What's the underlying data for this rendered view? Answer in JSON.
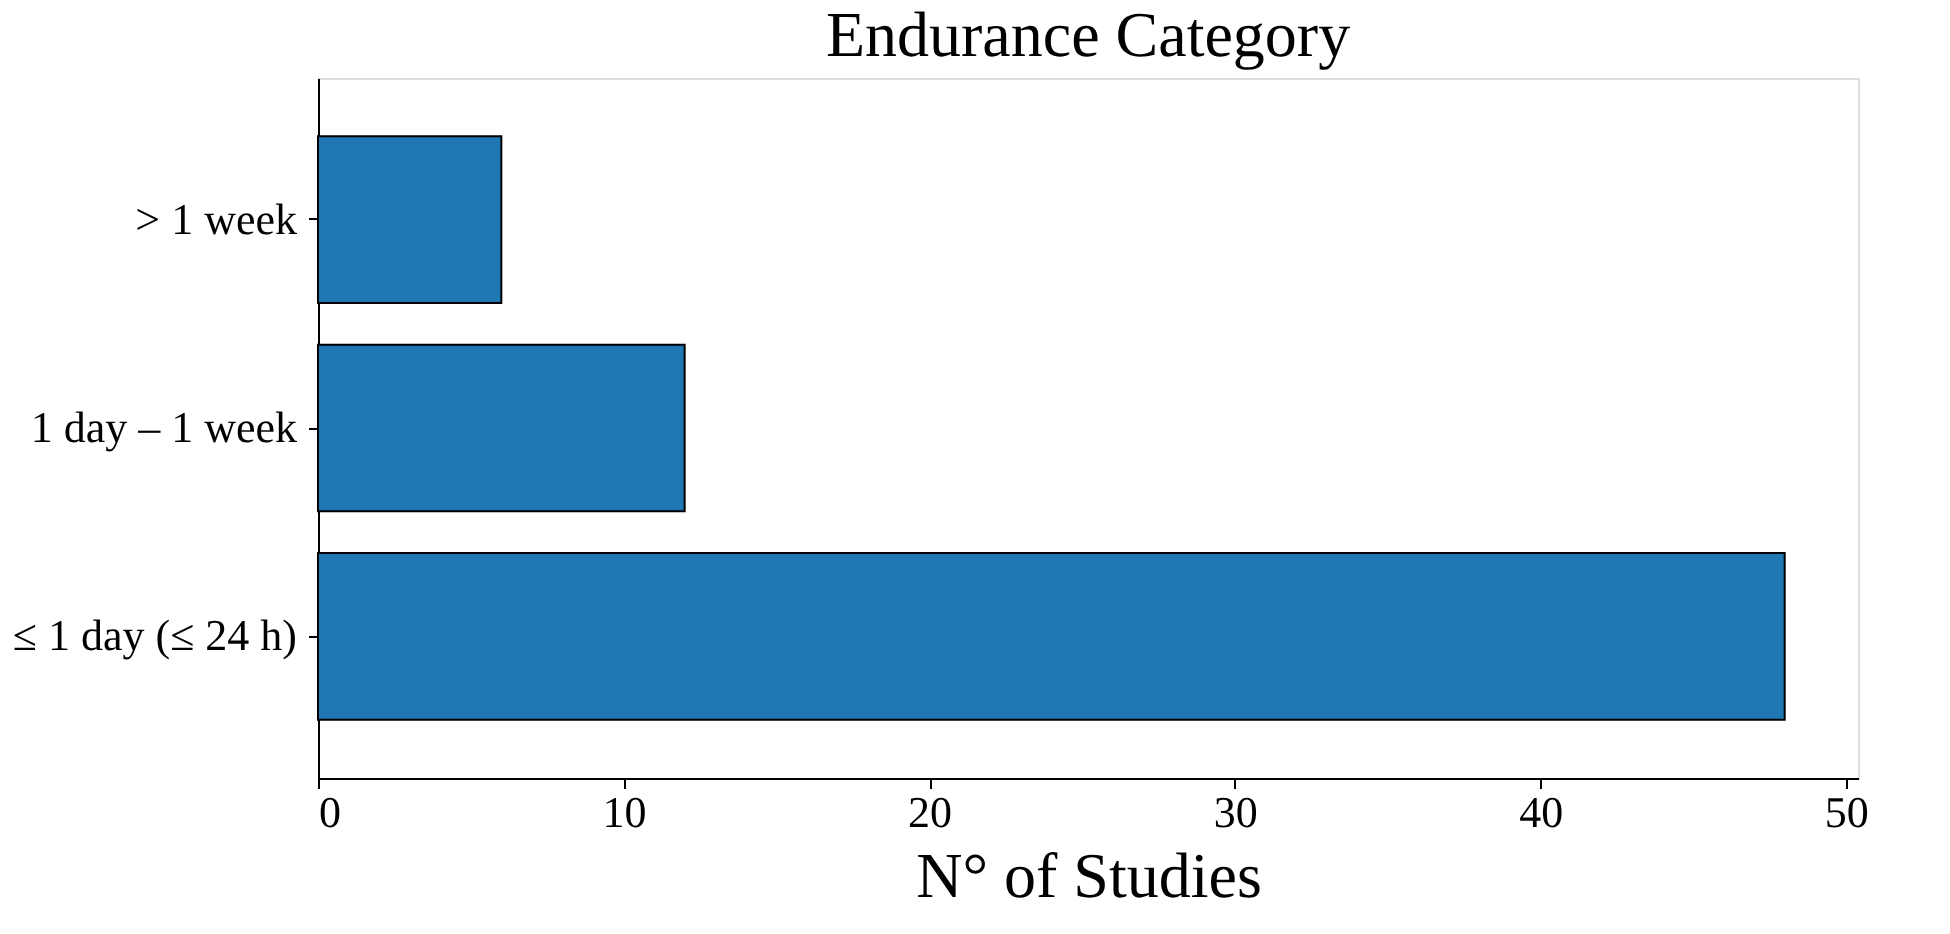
{
  "chart_data": {
    "type": "bar",
    "orientation": "horizontal",
    "title": "Endurance Category",
    "xlabel": "N° of Studies",
    "categories": [
      "> 1 week",
      "1 day – 1 week",
      "≤ 1 day (≤ 24 h)"
    ],
    "values": [
      6,
      12,
      48
    ],
    "color": "#1f77b4",
    "xlim": [
      0,
      50.4
    ],
    "xticks": [
      0,
      10,
      20,
      30,
      40,
      50
    ],
    "grid": false
  }
}
